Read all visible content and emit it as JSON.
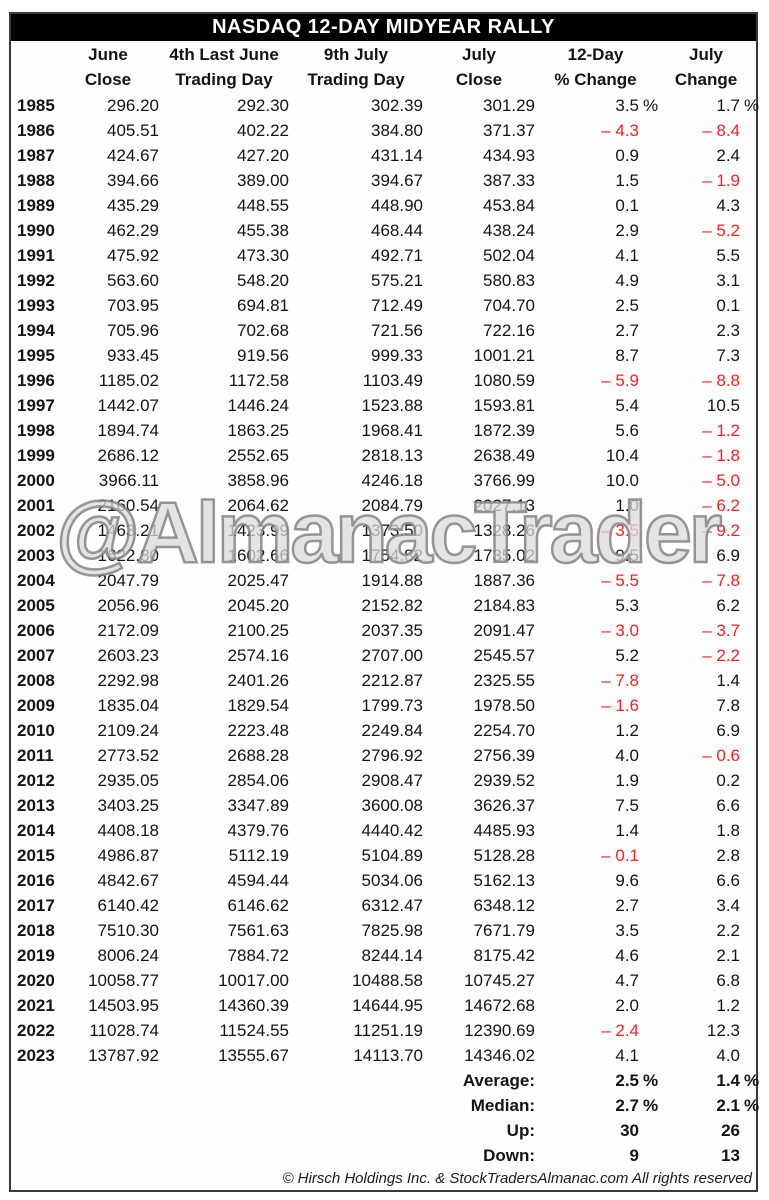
{
  "title": "NASDAQ 12-DAY MIDYEAR RALLY",
  "watermark": "@AlmanacTrader",
  "colors": {
    "negative": "#ff1e1e",
    "title_bg": "#000000",
    "title_text": "#ffffff",
    "border": "#3a3a3a"
  },
  "header": {
    "cols": [
      {
        "line1": "June",
        "line2": "Close"
      },
      {
        "line1": "4th Last June",
        "line2": "Trading Day"
      },
      {
        "line1": "9th July",
        "line2": "Trading Day"
      },
      {
        "line1": "July",
        "line2": "Close"
      },
      {
        "line1": "12-Day",
        "line2": "% Change"
      },
      {
        "line1": "July",
        "line2": "Change"
      }
    ]
  },
  "rows": [
    {
      "y": "1985",
      "c1": "296.20",
      "c2": "292.30",
      "c3": "302.39",
      "c4": "301.29",
      "c5": "3.5",
      "s5": "%",
      "c6": "1.7",
      "s6": "%"
    },
    {
      "y": "1986",
      "c1": "405.51",
      "c2": "402.22",
      "c3": "384.80",
      "c4": "371.37",
      "c5": "– 4.3",
      "s5": "",
      "c6": "– 8.4",
      "s6": ""
    },
    {
      "y": "1987",
      "c1": "424.67",
      "c2": "427.20",
      "c3": "431.14",
      "c4": "434.93",
      "c5": "0.9",
      "s5": "",
      "c6": "2.4",
      "s6": ""
    },
    {
      "y": "1988",
      "c1": "394.66",
      "c2": "389.00",
      "c3": "394.67",
      "c4": "387.33",
      "c5": "1.5",
      "s5": "",
      "c6": "– 1.9",
      "s6": ""
    },
    {
      "y": "1989",
      "c1": "435.29",
      "c2": "448.55",
      "c3": "448.90",
      "c4": "453.84",
      "c5": "0.1",
      "s5": "",
      "c6": "4.3",
      "s6": ""
    },
    {
      "y": "1990",
      "c1": "462.29",
      "c2": "455.38",
      "c3": "468.44",
      "c4": "438.24",
      "c5": "2.9",
      "s5": "",
      "c6": "– 5.2",
      "s6": ""
    },
    {
      "y": "1991",
      "c1": "475.92",
      "c2": "473.30",
      "c3": "492.71",
      "c4": "502.04",
      "c5": "4.1",
      "s5": "",
      "c6": "5.5",
      "s6": ""
    },
    {
      "y": "1992",
      "c1": "563.60",
      "c2": "548.20",
      "c3": "575.21",
      "c4": "580.83",
      "c5": "4.9",
      "s5": "",
      "c6": "3.1",
      "s6": ""
    },
    {
      "y": "1993",
      "c1": "703.95",
      "c2": "694.81",
      "c3": "712.49",
      "c4": "704.70",
      "c5": "2.5",
      "s5": "",
      "c6": "0.1",
      "s6": ""
    },
    {
      "y": "1994",
      "c1": "705.96",
      "c2": "702.68",
      "c3": "721.56",
      "c4": "722.16",
      "c5": "2.7",
      "s5": "",
      "c6": "2.3",
      "s6": ""
    },
    {
      "y": "1995",
      "c1": "933.45",
      "c2": "919.56",
      "c3": "999.33",
      "c4": "1001.21",
      "c5": "8.7",
      "s5": "",
      "c6": "7.3",
      "s6": ""
    },
    {
      "y": "1996",
      "c1": "1185.02",
      "c2": "1172.58",
      "c3": "1103.49",
      "c4": "1080.59",
      "c5": "– 5.9",
      "s5": "",
      "c6": "– 8.8",
      "s6": ""
    },
    {
      "y": "1997",
      "c1": "1442.07",
      "c2": "1446.24",
      "c3": "1523.88",
      "c4": "1593.81",
      "c5": "5.4",
      "s5": "",
      "c6": "10.5",
      "s6": ""
    },
    {
      "y": "1998",
      "c1": "1894.74",
      "c2": "1863.25",
      "c3": "1968.41",
      "c4": "1872.39",
      "c5": "5.6",
      "s5": "",
      "c6": "– 1.2",
      "s6": ""
    },
    {
      "y": "1999",
      "c1": "2686.12",
      "c2": "2552.65",
      "c3": "2818.13",
      "c4": "2638.49",
      "c5": "10.4",
      "s5": "",
      "c6": "– 1.8",
      "s6": ""
    },
    {
      "y": "2000",
      "c1": "3966.11",
      "c2": "3858.96",
      "c3": "4246.18",
      "c4": "3766.99",
      "c5": "10.0",
      "s5": "",
      "c6": "– 5.0",
      "s6": ""
    },
    {
      "y": "2001",
      "c1": "2160.54",
      "c2": "2064.62",
      "c3": "2084.79",
      "c4": "2027.13",
      "c5": "1.0",
      "s5": "",
      "c6": "– 6.2",
      "s6": ""
    },
    {
      "y": "2002",
      "c1": "1463.21",
      "c2": "1423.99",
      "c3": "1373.50",
      "c4": "1328.26",
      "c5": "– 3.5",
      "s5": "",
      "c6": "– 9.2",
      "s6": ""
    },
    {
      "y": "2003",
      "c1": "1622.80",
      "c2": "1602.66",
      "c3": "1754.82",
      "c4": "1735.02",
      "c5": "9.5",
      "s5": "",
      "c6": "6.9",
      "s6": ""
    },
    {
      "y": "2004",
      "c1": "2047.79",
      "c2": "2025.47",
      "c3": "1914.88",
      "c4": "1887.36",
      "c5": "– 5.5",
      "s5": "",
      "c6": "– 7.8",
      "s6": ""
    },
    {
      "y": "2005",
      "c1": "2056.96",
      "c2": "2045.20",
      "c3": "2152.82",
      "c4": "2184.83",
      "c5": "5.3",
      "s5": "",
      "c6": "6.2",
      "s6": ""
    },
    {
      "y": "2006",
      "c1": "2172.09",
      "c2": "2100.25",
      "c3": "2037.35",
      "c4": "2091.47",
      "c5": "– 3.0",
      "s5": "",
      "c6": "– 3.7",
      "s6": ""
    },
    {
      "y": "2007",
      "c1": "2603.23",
      "c2": "2574.16",
      "c3": "2707.00",
      "c4": "2545.57",
      "c5": "5.2",
      "s5": "",
      "c6": "– 2.2",
      "s6": ""
    },
    {
      "y": "2008",
      "c1": "2292.98",
      "c2": "2401.26",
      "c3": "2212.87",
      "c4": "2325.55",
      "c5": "– 7.8",
      "s5": "",
      "c6": "1.4",
      "s6": ""
    },
    {
      "y": "2009",
      "c1": "1835.04",
      "c2": "1829.54",
      "c3": "1799.73",
      "c4": "1978.50",
      "c5": "– 1.6",
      "s5": "",
      "c6": "7.8",
      "s6": ""
    },
    {
      "y": "2010",
      "c1": "2109.24",
      "c2": "2223.48",
      "c3": "2249.84",
      "c4": "2254.70",
      "c5": "1.2",
      "s5": "",
      "c6": "6.9",
      "s6": ""
    },
    {
      "y": "2011",
      "c1": "2773.52",
      "c2": "2688.28",
      "c3": "2796.92",
      "c4": "2756.39",
      "c5": "4.0",
      "s5": "",
      "c6": "– 0.6",
      "s6": ""
    },
    {
      "y": "2012",
      "c1": "2935.05",
      "c2": "2854.06",
      "c3": "2908.47",
      "c4": "2939.52",
      "c5": "1.9",
      "s5": "",
      "c6": "0.2",
      "s6": ""
    },
    {
      "y": "2013",
      "c1": "3403.25",
      "c2": "3347.89",
      "c3": "3600.08",
      "c4": "3626.37",
      "c5": "7.5",
      "s5": "",
      "c6": "6.6",
      "s6": ""
    },
    {
      "y": "2014",
      "c1": "4408.18",
      "c2": "4379.76",
      "c3": "4440.42",
      "c4": "4485.93",
      "c5": "1.4",
      "s5": "",
      "c6": "1.8",
      "s6": ""
    },
    {
      "y": "2015",
      "c1": "4986.87",
      "c2": "5112.19",
      "c3": "5104.89",
      "c4": "5128.28",
      "c5": "– 0.1",
      "s5": "",
      "c6": "2.8",
      "s6": ""
    },
    {
      "y": "2016",
      "c1": "4842.67",
      "c2": "4594.44",
      "c3": "5034.06",
      "c4": "5162.13",
      "c5": "9.6",
      "s5": "",
      "c6": "6.6",
      "s6": ""
    },
    {
      "y": "2017",
      "c1": "6140.42",
      "c2": "6146.62",
      "c3": "6312.47",
      "c4": "6348.12",
      "c5": "2.7",
      "s5": "",
      "c6": "3.4",
      "s6": ""
    },
    {
      "y": "2018",
      "c1": "7510.30",
      "c2": "7561.63",
      "c3": "7825.98",
      "c4": "7671.79",
      "c5": "3.5",
      "s5": "",
      "c6": "2.2",
      "s6": ""
    },
    {
      "y": "2019",
      "c1": "8006.24",
      "c2": "7884.72",
      "c3": "8244.14",
      "c4": "8175.42",
      "c5": "4.6",
      "s5": "",
      "c6": "2.1",
      "s6": ""
    },
    {
      "y": "2020",
      "c1": "10058.77",
      "c2": "10017.00",
      "c3": "10488.58",
      "c4": "10745.27",
      "c5": "4.7",
      "s5": "",
      "c6": "6.8",
      "s6": ""
    },
    {
      "y": "2021",
      "c1": "14503.95",
      "c2": "14360.39",
      "c3": "14644.95",
      "c4": "14672.68",
      "c5": "2.0",
      "s5": "",
      "c6": "1.2",
      "s6": ""
    },
    {
      "y": "2022",
      "c1": "11028.74",
      "c2": "11524.55",
      "c3": "11251.19",
      "c4": "12390.69",
      "c5": "– 2.4",
      "s5": "",
      "c6": "12.3",
      "s6": ""
    },
    {
      "y": "2023",
      "c1": "13787.92",
      "c2": "13555.67",
      "c3": "14113.70",
      "c4": "14346.02",
      "c5": "4.1",
      "s5": "",
      "c6": "4.0",
      "s6": ""
    }
  ],
  "summary": [
    {
      "label": "Average:",
      "v12": "2.5",
      "s12": "%",
      "vjul": "1.4",
      "sjul": "%"
    },
    {
      "label": "Median:",
      "v12": "2.7",
      "s12": "%",
      "vjul": "2.1",
      "sjul": "%"
    },
    {
      "label": "Up:",
      "v12": "30",
      "s12": "",
      "vjul": "26",
      "sjul": ""
    },
    {
      "label": "Down:",
      "v12": "9",
      "s12": "",
      "vjul": "13",
      "sjul": ""
    }
  ],
  "footer": "© Hirsch Holdings Inc. & StockTradersAlmanac.com All rights reserved"
}
